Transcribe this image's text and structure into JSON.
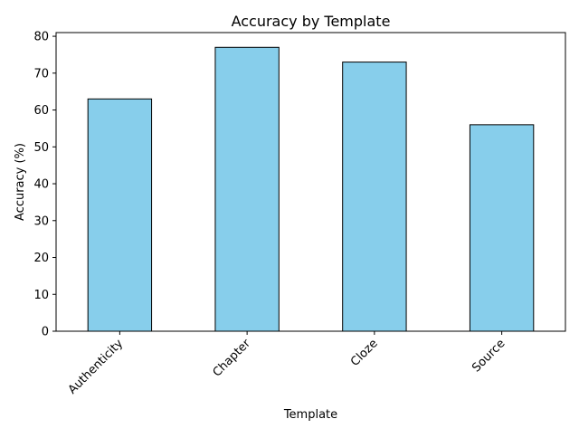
{
  "chart_data": {
    "type": "bar",
    "title": "Accuracy by Template",
    "xlabel": "Template",
    "ylabel": "Accuracy (%)",
    "categories": [
      "Authenticity",
      "Chapter",
      "Cloze",
      "Source"
    ],
    "values": [
      63,
      77,
      73,
      56
    ],
    "ylim": [
      0,
      81
    ],
    "yticks": [
      0,
      10,
      20,
      30,
      40,
      50,
      60,
      70,
      80
    ],
    "grid": false,
    "legend": "none",
    "bar_color": "#87ceeb",
    "bar_edge_color": "#000000"
  }
}
